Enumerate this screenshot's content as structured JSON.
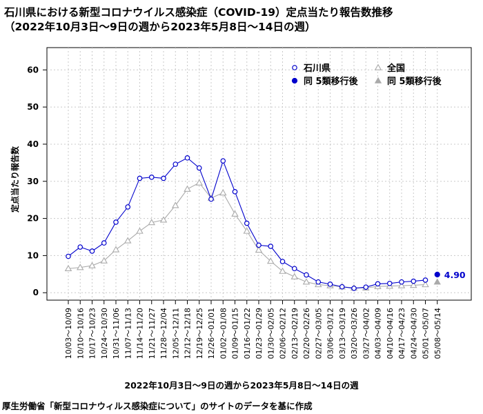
{
  "title_line1": "石川県における新型コロナウイルス感染症（COVID-19）定点当たり報告数推移",
  "title_line2": "（2022年10月3日～9日の週から2023年5月8日～14日の週）",
  "source_note": "厚生労働省「新型コロナウィルス感染症について」のサイトのデータを基に作成",
  "chart_data": {
    "type": "line",
    "xlabel": "2022年10月3日～9日の週から2023年5月8日～14日の週",
    "ylabel": "定点当たり報告数",
    "ylim": [
      -2,
      66
    ],
    "yticks": [
      0,
      10,
      20,
      30,
      40,
      50,
      60
    ],
    "grid": true,
    "legend_position": "top-right",
    "categories": [
      "10/03～10/09",
      "10/10～10/16",
      "10/17～10/23",
      "10/24～10/30",
      "10/31～11/06",
      "11/07～11/13",
      "11/14～11/20",
      "11/21～11/27",
      "11/28～12/04",
      "12/05～12/11",
      "12/12～12/18",
      "12/19～12/25",
      "12/26～01/01",
      "01/02～01/08",
      "01/09～01/15",
      "01/16～01/22",
      "01/23～01/29",
      "01/30～02/05",
      "02/06～02/12",
      "02/13～02/19",
      "02/20～02/26",
      "02/27～03/05",
      "03/06～03/12",
      "03/13～03/19",
      "03/20～03/26",
      "03/27～04/02",
      "04/03～04/09",
      "04/10～04/16",
      "04/17～04/23",
      "04/24～04/30",
      "05/01～05/07",
      "05/08～05/14"
    ],
    "series": [
      {
        "name": "石川県",
        "color": "#0000cc",
        "marker": "open-circle",
        "values": [
          9.8,
          12.3,
          11.2,
          13.4,
          19.0,
          23.1,
          30.8,
          31.1,
          30.8,
          34.6,
          36.3,
          33.6,
          25.2,
          35.5,
          27.2,
          18.7,
          12.8,
          12.5,
          8.4,
          6.5,
          4.8,
          2.9,
          2.3,
          1.6,
          1.2,
          1.5,
          2.4,
          2.5,
          2.9,
          3.1,
          3.4,
          null
        ]
      },
      {
        "name": "全国",
        "color": "#aaaaaa",
        "marker": "open-triangle",
        "values": [
          6.5,
          6.8,
          7.3,
          8.6,
          11.6,
          14.0,
          16.6,
          18.9,
          19.6,
          23.5,
          27.9,
          29.6,
          25.5,
          26.9,
          21.2,
          16.6,
          11.5,
          8.5,
          5.8,
          4.3,
          2.9,
          2.2,
          1.9,
          1.6,
          1.3,
          1.3,
          1.7,
          1.8,
          1.9,
          2.0,
          2.2,
          null
        ]
      },
      {
        "name": "同 5類移行後",
        "color": "#0000cc",
        "marker": "filled-circle",
        "values": [
          null,
          null,
          null,
          null,
          null,
          null,
          null,
          null,
          null,
          null,
          null,
          null,
          null,
          null,
          null,
          null,
          null,
          null,
          null,
          null,
          null,
          null,
          null,
          null,
          null,
          null,
          null,
          null,
          null,
          null,
          null,
          4.9
        ]
      },
      {
        "name": "同 5類移行後",
        "color": "#aaaaaa",
        "marker": "filled-triangle",
        "values": [
          null,
          null,
          null,
          null,
          null,
          null,
          null,
          null,
          null,
          null,
          null,
          null,
          null,
          null,
          null,
          null,
          null,
          null,
          null,
          null,
          null,
          null,
          null,
          null,
          null,
          null,
          null,
          null,
          null,
          null,
          null,
          2.9
        ]
      }
    ],
    "annotation": "4.90"
  }
}
